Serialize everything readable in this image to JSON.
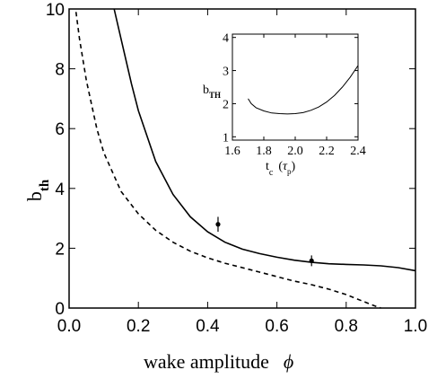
{
  "chart_data": [
    {
      "type": "line",
      "xlabel": "wake amplitude",
      "xlabel_symbol": "ϕ",
      "ylabel": "b",
      "ylabel_sub": "th",
      "xlim": [
        0.0,
        1.0
      ],
      "ylim": [
        0,
        10
      ],
      "xticks": [
        "0.0",
        "0.2",
        "0.4",
        "0.6",
        "0.8",
        "1.0"
      ],
      "yticks": [
        "0",
        "2",
        "4",
        "6",
        "8",
        "10"
      ],
      "series": [
        {
          "style": "solid",
          "x": [
            0.13,
            0.15,
            0.18,
            0.2,
            0.25,
            0.3,
            0.35,
            0.4,
            0.45,
            0.5,
            0.55,
            0.6,
            0.65,
            0.7,
            0.75,
            0.8,
            0.85,
            0.9,
            0.95,
            1.0
          ],
          "y": [
            10.2,
            9.0,
            7.5,
            6.6,
            4.9,
            3.8,
            3.05,
            2.55,
            2.2,
            1.97,
            1.82,
            1.7,
            1.6,
            1.53,
            1.48,
            1.46,
            1.44,
            1.41,
            1.35,
            1.25
          ]
        },
        {
          "style": "dashed",
          "x": [
            0.02,
            0.03,
            0.05,
            0.08,
            0.1,
            0.15,
            0.2,
            0.25,
            0.3,
            0.35,
            0.4,
            0.45,
            0.5,
            0.55,
            0.6,
            0.65,
            0.7,
            0.75,
            0.8,
            0.85,
            0.88,
            0.9
          ],
          "y": [
            9.9,
            9.0,
            7.6,
            6.0,
            5.2,
            3.9,
            3.15,
            2.6,
            2.2,
            1.9,
            1.68,
            1.5,
            1.35,
            1.2,
            1.05,
            0.9,
            0.78,
            0.63,
            0.45,
            0.22,
            0.08,
            0.0
          ]
        }
      ],
      "points": [
        {
          "x": 0.43,
          "y": 2.8,
          "yerr": 0.25
        },
        {
          "x": 0.7,
          "y": 1.58,
          "yerr": 0.18
        }
      ]
    },
    {
      "type": "line",
      "xlabel": "t",
      "xlabel_sub": "c",
      "xlabel_unit": "τ",
      "xlabel_unit_sub": "p",
      "ylabel": "b",
      "ylabel_sub": "TH",
      "xlim": [
        1.6,
        2.4
      ],
      "ylim": [
        0.9,
        4.1
      ],
      "xticks": [
        "1.6",
        "1.8",
        "2.0",
        "2.2",
        "2.4"
      ],
      "yticks": [
        "1",
        "2",
        "3",
        "4"
      ],
      "series": [
        {
          "style": "solid",
          "x": [
            1.7,
            1.72,
            1.75,
            1.8,
            1.85,
            1.9,
            1.95,
            2.0,
            2.05,
            2.1,
            2.15,
            2.2,
            2.25,
            2.3,
            2.35,
            2.4
          ],
          "y": [
            2.15,
            2.0,
            1.88,
            1.78,
            1.72,
            1.7,
            1.69,
            1.7,
            1.73,
            1.8,
            1.9,
            2.05,
            2.25,
            2.5,
            2.8,
            3.15
          ]
        }
      ]
    }
  ]
}
